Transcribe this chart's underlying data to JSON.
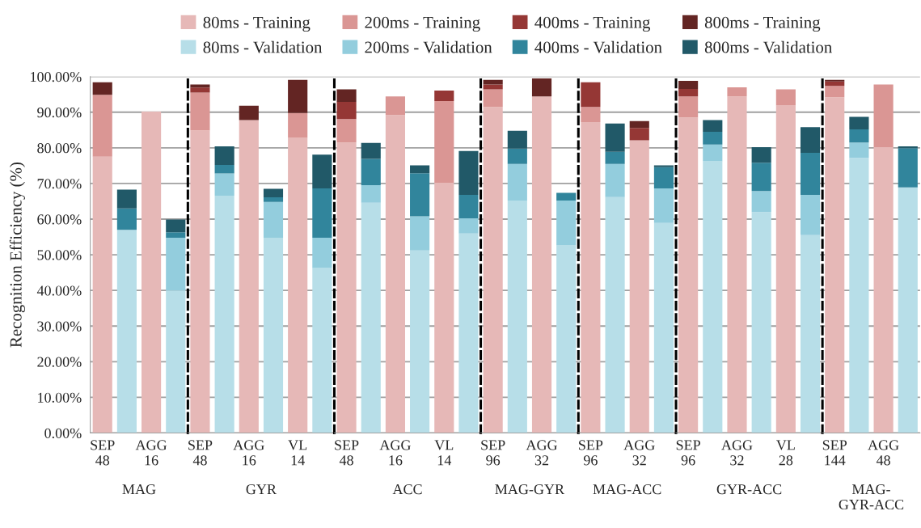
{
  "chart_data": [
    {
      "type": "bar",
      "stacked": true,
      "xlabel": "MAG",
      "ylabel": "Recognition Efficiency (%)",
      "legend": "top",
      "grid": "y",
      "ylim": [
        0,
        100
      ],
      "yticks": [
        {
          "value": 0,
          "label": "0.00%"
        },
        {
          "value": 10,
          "label": "10.00%"
        },
        {
          "value": 20,
          "label": "20.00%"
        },
        {
          "value": 30,
          "label": "30.00%"
        },
        {
          "value": 40,
          "label": "40.00%"
        },
        {
          "value": 50,
          "label": "50.00%"
        },
        {
          "value": 60,
          "label": "60.00%"
        },
        {
          "value": 70,
          "label": "70.00%"
        },
        {
          "value": 80,
          "label": "80.00%"
        },
        {
          "value": 90,
          "label": "90.00%"
        },
        {
          "value": 100,
          "label": "100.00%"
        }
      ],
      "categories": [
        "SEP\n48",
        null,
        "AGG\n16",
        null
      ],
      "series": [
        {
          "name": "80ms - Training",
          "color": "#e6b8b7",
          "values": [
            77.5,
            null,
            90.2,
            null
          ]
        },
        {
          "name": "80ms - Validation",
          "color": "#b7dee8",
          "values": [
            null,
            57,
            null,
            40
          ]
        },
        {
          "name": "200ms - Training",
          "color": "#da9694",
          "values": [
            17.4,
            null,
            0,
            null
          ]
        },
        {
          "name": "200ms - Validation",
          "color": "#93cddd",
          "values": [
            null,
            0,
            null,
            14.8
          ]
        },
        {
          "name": "400ms - Training",
          "color": "#953735",
          "values": [
            0,
            null,
            0,
            null
          ]
        },
        {
          "name": "400ms - Validation",
          "color": "#31859c",
          "values": [
            null,
            6,
            null,
            1.5
          ]
        },
        {
          "name": "800ms - Training",
          "color": "#632523",
          "values": [
            3.5,
            null,
            0,
            null
          ]
        },
        {
          "name": "800ms - Validation",
          "color": "#215968",
          "values": [
            null,
            5.3,
            null,
            3.6
          ]
        }
      ]
    },
    {
      "type": "bar",
      "stacked": true,
      "xlabel": "GYR",
      "grid": "y",
      "tick_labels": "x",
      "ylim": [
        0,
        100
      ],
      "yticks": [
        0,
        10,
        20,
        30,
        40,
        50,
        60,
        70,
        80,
        90,
        100
      ],
      "categories": [
        "SEP\n48",
        null,
        "AGG\n16",
        null,
        "VL\n14",
        null
      ],
      "series": [
        {
          "color": "#e6b8b7",
          "values": [
            84.9,
            null,
            87.8,
            null,
            82.8,
            null
          ]
        },
        {
          "color": "#b7dee8",
          "values": [
            null,
            66.6,
            null,
            54.8,
            null,
            46.3
          ]
        },
        {
          "color": "#da9694",
          "values": [
            10.6,
            null,
            0,
            null,
            7,
            null
          ]
        },
        {
          "color": "#93cddd",
          "values": [
            null,
            6.2,
            null,
            10,
            null,
            8.5
          ]
        },
        {
          "color": "#953735",
          "values": [
            1.4,
            null,
            0,
            null,
            0,
            null
          ]
        },
        {
          "color": "#31859c",
          "values": [
            null,
            2.4,
            null,
            1.3,
            null,
            13.8
          ]
        },
        {
          "color": "#632523",
          "values": [
            0.9,
            null,
            4,
            null,
            9.3,
            null
          ]
        },
        {
          "color": "#215968",
          "values": [
            null,
            5.2,
            null,
            2.4,
            null,
            9.5
          ]
        }
      ]
    },
    {
      "type": "bar",
      "stacked": true,
      "xlabel": "ACC",
      "grid": "y",
      "tick_labels": "x",
      "ylim": [
        0,
        100
      ],
      "yticks": [
        0,
        10,
        20,
        30,
        40,
        50,
        60,
        70,
        80,
        90,
        100
      ],
      "categories": [
        "SEP\n48",
        null,
        "AGG\n16",
        null,
        "VL\n14",
        null
      ],
      "series": [
        {
          "color": "#e6b8b7",
          "values": [
            81.5,
            null,
            89.2,
            null,
            70.2,
            null
          ]
        },
        {
          "color": "#b7dee8",
          "values": [
            null,
            64.6,
            null,
            51.2,
            null,
            56
          ]
        },
        {
          "color": "#da9694",
          "values": [
            6.6,
            null,
            5.2,
            null,
            22.9,
            null
          ]
        },
        {
          "color": "#93cddd",
          "values": [
            null,
            4.9,
            null,
            9.6,
            null,
            4.2
          ]
        },
        {
          "color": "#953735",
          "values": [
            4.8,
            null,
            0,
            null,
            3,
            null
          ]
        },
        {
          "color": "#31859c",
          "values": [
            null,
            7.4,
            null,
            12.1,
            null,
            6.6
          ]
        },
        {
          "color": "#632523",
          "values": [
            3.5,
            null,
            0,
            null,
            0,
            null
          ]
        },
        {
          "color": "#215968",
          "values": [
            null,
            4.5,
            null,
            2.2,
            null,
            12.3
          ]
        }
      ]
    },
    {
      "type": "bar",
      "stacked": true,
      "xlabel": "MAG-GYR",
      "grid": "y",
      "tick_labels": "x",
      "ylim": [
        0,
        100
      ],
      "yticks": [
        0,
        10,
        20,
        30,
        40,
        50,
        60,
        70,
        80,
        90,
        100
      ],
      "categories": [
        "SEP\n96",
        null,
        "AGG\n32",
        null
      ],
      "series": [
        {
          "color": "#e6b8b7",
          "values": [
            91.5,
            null,
            94.4,
            null
          ]
        },
        {
          "color": "#b7dee8",
          "values": [
            null,
            65.2,
            null,
            52.6
          ]
        },
        {
          "color": "#da9694",
          "values": [
            4.9,
            null,
            0,
            null
          ]
        },
        {
          "color": "#93cddd",
          "values": [
            null,
            10.3,
            null,
            12.6
          ]
        },
        {
          "color": "#953735",
          "values": [
            1.4,
            null,
            0,
            null
          ]
        },
        {
          "color": "#31859c",
          "values": [
            null,
            4.3,
            null,
            2.2
          ]
        },
        {
          "color": "#632523",
          "values": [
            1.3,
            null,
            5.1,
            null
          ]
        },
        {
          "color": "#215968",
          "values": [
            null,
            5,
            null,
            0
          ]
        }
      ]
    },
    {
      "type": "bar",
      "stacked": true,
      "xlabel": "MAG-ACC",
      "grid": "y",
      "tick_labels": "x",
      "ylim": [
        0,
        100
      ],
      "yticks": [
        0,
        10,
        20,
        30,
        40,
        50,
        60,
        70,
        80,
        90,
        100
      ],
      "categories": [
        "SEP\n96",
        null,
        "AGG\n32",
        null
      ],
      "series": [
        {
          "color": "#e6b8b7",
          "values": [
            87.2,
            null,
            82.1,
            null
          ]
        },
        {
          "color": "#b7dee8",
          "values": [
            null,
            66.2,
            null,
            58.9
          ]
        },
        {
          "color": "#da9694",
          "values": [
            4.3,
            null,
            0,
            null
          ]
        },
        {
          "color": "#93cddd",
          "values": [
            null,
            9.3,
            null,
            9.7
          ]
        },
        {
          "color": "#953735",
          "values": [
            6.9,
            null,
            3.5,
            null
          ]
        },
        {
          "color": "#31859c",
          "values": [
            null,
            3.4,
            null,
            6
          ]
        },
        {
          "color": "#632523",
          "values": [
            0,
            null,
            1.9,
            null
          ]
        },
        {
          "color": "#215968",
          "values": [
            null,
            7.9,
            null,
            0.5
          ]
        }
      ]
    },
    {
      "type": "bar",
      "stacked": true,
      "xlabel": "GYR-ACC",
      "grid": "y",
      "tick_labels": "x",
      "ylim": [
        0,
        100
      ],
      "yticks": [
        0,
        10,
        20,
        30,
        40,
        50,
        60,
        70,
        80,
        90,
        100
      ],
      "categories": [
        "SEP\n96",
        null,
        "AGG\n32",
        null,
        "VL\n28",
        null
      ],
      "series": [
        {
          "color": "#e6b8b7",
          "values": [
            88.5,
            null,
            94.4,
            null,
            91.9,
            null
          ]
        },
        {
          "color": "#b7dee8",
          "values": [
            null,
            76.2,
            null,
            62,
            null,
            55.5
          ]
        },
        {
          "color": "#da9694",
          "values": [
            5.9,
            null,
            2.6,
            null,
            4.5,
            null
          ]
        },
        {
          "color": "#93cddd",
          "values": [
            null,
            4.7,
            null,
            5.9,
            null,
            11.3
          ]
        },
        {
          "color": "#953735",
          "values": [
            2.1,
            null,
            0,
            null,
            0,
            null
          ]
        },
        {
          "color": "#31859c",
          "values": [
            null,
            3.6,
            null,
            7.9,
            null,
            11.8
          ]
        },
        {
          "color": "#632523",
          "values": [
            2.3,
            null,
            0,
            null,
            0,
            null
          ]
        },
        {
          "color": "#215968",
          "values": [
            null,
            3.3,
            null,
            4.4,
            null,
            7.2
          ]
        }
      ]
    },
    {
      "type": "bar",
      "stacked": true,
      "xlabel": "MAG-\nGYR-ACC",
      "grid": "y",
      "tick_labels": "x",
      "ylim": [
        0,
        100
      ],
      "yticks": [
        0,
        10,
        20,
        30,
        40,
        50,
        60,
        70,
        80,
        90,
        100
      ],
      "categories": [
        "SEP\n144",
        null,
        "AGG\n48",
        null
      ],
      "series": [
        {
          "color": "#e6b8b7",
          "values": [
            94.2,
            null,
            80.2,
            null
          ]
        },
        {
          "color": "#b7dee8",
          "values": [
            null,
            77.2,
            null,
            68.9
          ]
        },
        {
          "color": "#da9694",
          "values": [
            3.2,
            null,
            17.6,
            null
          ]
        },
        {
          "color": "#93cddd",
          "values": [
            null,
            4.3,
            null,
            0
          ]
        },
        {
          "color": "#953735",
          "values": [
            1.2,
            null,
            0,
            null
          ]
        },
        {
          "color": "#31859c",
          "values": [
            null,
            3.7,
            null,
            11
          ]
        },
        {
          "color": "#632523",
          "values": [
            0.5,
            null,
            0,
            null
          ]
        },
        {
          "color": "#215968",
          "values": [
            null,
            3.5,
            null,
            0.5
          ]
        }
      ]
    }
  ]
}
